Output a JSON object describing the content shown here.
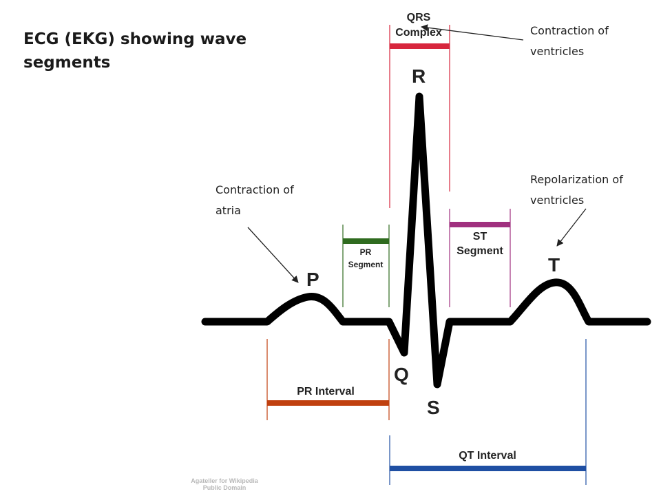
{
  "title": "ECG (EKG) showing wave segments",
  "annotations": {
    "ventricles_contraction": [
      "Contraction of",
      "ventricles"
    ],
    "ventricles_repolarization": [
      "Repolarization of",
      "ventricles"
    ],
    "atria_contraction": [
      "Contraction of",
      "atria"
    ]
  },
  "waves": {
    "p": "P",
    "q": "Q",
    "r": "R",
    "s": "S",
    "t": "T"
  },
  "segments": {
    "qrs_complex": [
      "QRS",
      "Complex"
    ],
    "pr_segment": [
      "PR",
      "Segment"
    ],
    "st_segment": [
      "ST",
      "Segment"
    ],
    "pr_interval": "PR Interval",
    "qt_interval": "QT Interval"
  },
  "colors": {
    "qrs": "#d7263d",
    "pr_segment": "#2f6b1f",
    "st_segment": "#a0307f",
    "pr_interval": "#c0400f",
    "qt_interval": "#1f4fa3",
    "trace": "#000000"
  },
  "credit": [
    "Agateller for Wikipedia",
    "Public Domain"
  ]
}
